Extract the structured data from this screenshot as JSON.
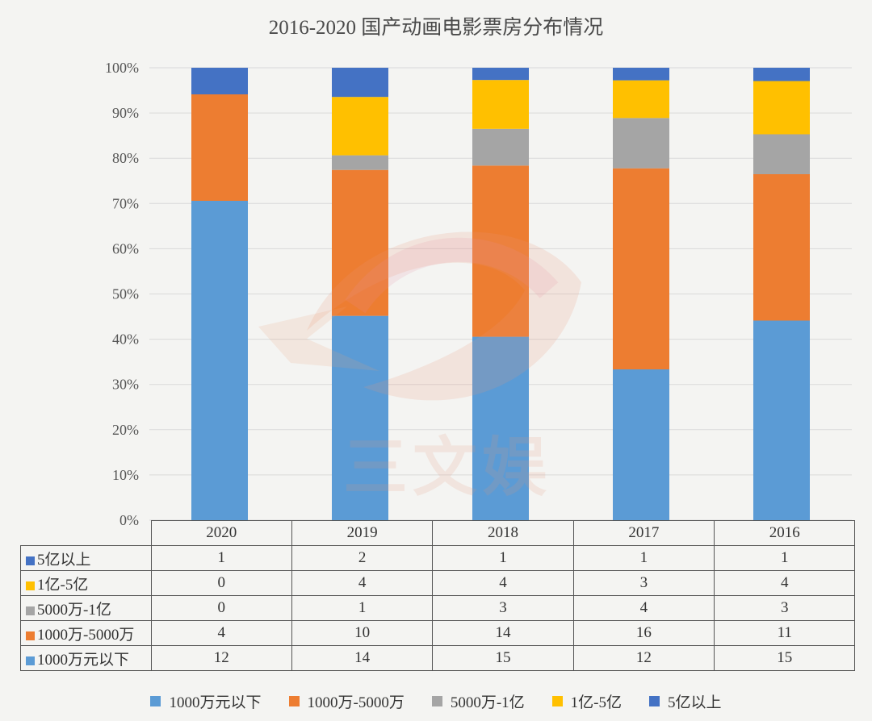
{
  "chart_data": {
    "type": "bar",
    "stacked": "percent",
    "title": "2016-2020 国产动画电影票房分布情况",
    "categories": [
      "2020",
      "2019",
      "2018",
      "2017",
      "2016"
    ],
    "y_ticks": [
      "0%",
      "10%",
      "20%",
      "30%",
      "40%",
      "50%",
      "60%",
      "70%",
      "80%",
      "90%",
      "100%"
    ],
    "ylim": [
      0,
      100
    ],
    "grid": true,
    "legend_position": "bottom",
    "series": [
      {
        "name": "1000万元以下",
        "color": "#5b9bd5",
        "values": [
          12,
          14,
          15,
          12,
          15
        ]
      },
      {
        "name": "1000万-5000万",
        "color": "#ed7d31",
        "values": [
          4,
          10,
          14,
          16,
          11
        ]
      },
      {
        "name": "5000万-1亿",
        "color": "#a5a5a5",
        "values": [
          0,
          1,
          3,
          4,
          3
        ]
      },
      {
        "name": "1亿-5亿",
        "color": "#ffc000",
        "values": [
          0,
          4,
          4,
          3,
          4
        ]
      },
      {
        "name": "5亿以上",
        "color": "#4472c4",
        "values": [
          1,
          2,
          1,
          1,
          1
        ]
      }
    ]
  },
  "watermark": {
    "text": "三文娱"
  }
}
